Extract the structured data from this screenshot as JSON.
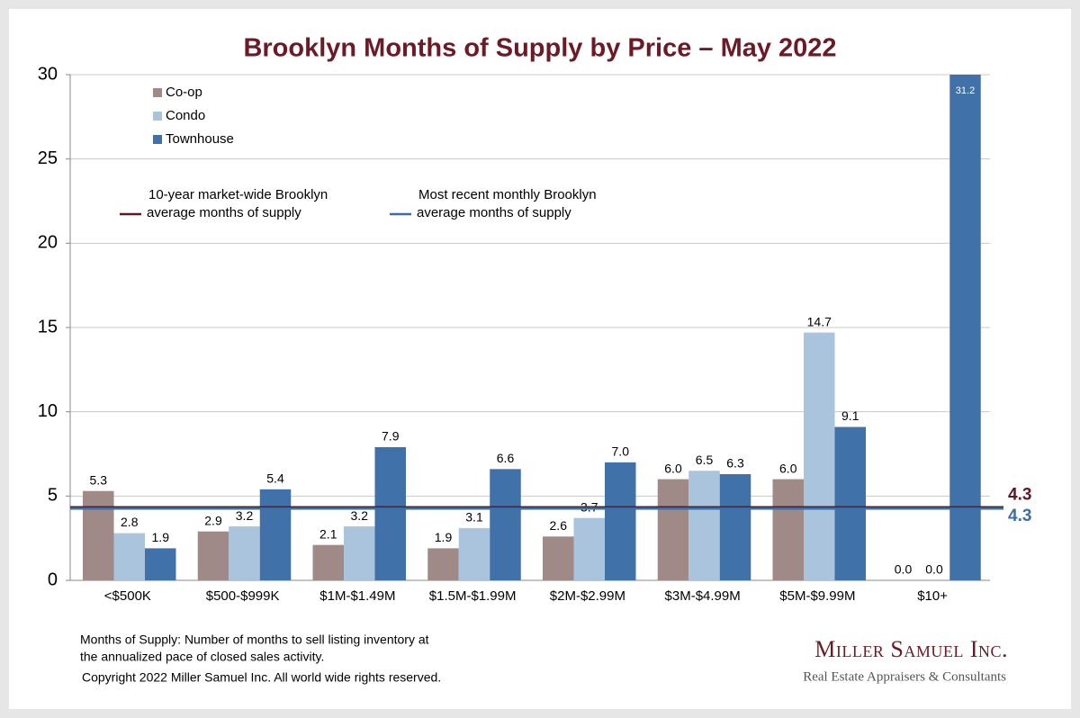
{
  "chart_data": {
    "type": "bar",
    "title": "Brooklyn Months of Supply by Price – May 2022",
    "categories": [
      "<$500K",
      "$500-$999K",
      "$1M-$1.49M",
      "$1.5M-$1.99M",
      "$2M-$2.99M",
      "$3M-$4.99M",
      "$5M-$9.99M",
      "$10+"
    ],
    "series": [
      {
        "name": "Co-op",
        "color": "#a08a87",
        "values": [
          5.3,
          2.9,
          2.1,
          1.9,
          2.6,
          6.0,
          6.0,
          0.0
        ],
        "value_labels": [
          "5.3",
          "2.9",
          "2.1",
          "1.9",
          "2.6",
          "6.0",
          "6.0",
          "0.0"
        ]
      },
      {
        "name": "Condo",
        "color": "#a9c4dc",
        "values": [
          2.8,
          3.2,
          3.2,
          3.1,
          3.7,
          6.5,
          14.7,
          0.0
        ],
        "value_labels": [
          "2.8",
          "3.2",
          "3.2",
          "3.1",
          "3.7",
          "6.5",
          "14.7",
          "0.0"
        ]
      },
      {
        "name": "Townhouse",
        "color": "#4071a8",
        "values": [
          1.9,
          5.4,
          7.9,
          6.6,
          7.0,
          6.3,
          9.1,
          31.2
        ],
        "value_labels": [
          "1.9",
          "5.4",
          "7.9",
          "6.6",
          "7.0",
          "6.3",
          "9.1",
          "31.2"
        ]
      }
    ],
    "reference_lines": [
      {
        "name_lines": [
          "10-year market-wide Brooklyn",
          "average months of supply"
        ],
        "value": 4.34,
        "label": "4.3",
        "color": "#5c1a26"
      },
      {
        "name_lines": [
          "Most recent monthly Brooklyn",
          "average months of supply"
        ],
        "value": 4.26,
        "label": "4.3",
        "color": "#3f6ea6"
      }
    ],
    "ylim": [
      0,
      30
    ],
    "yticks": [
      0,
      5,
      10,
      15,
      20,
      25,
      30
    ],
    "grid": true,
    "footnote": [
      "Months of Supply: Number of months to sell listing inventory at",
      "the annualized pace of closed sales activity.",
      "Copyright 2022 Miller Samuel Inc.  All world wide rights reserved."
    ],
    "logo": {
      "name": "Miller Samuel Inc.",
      "tagline": "Real Estate Appraisers & Consultants"
    }
  }
}
